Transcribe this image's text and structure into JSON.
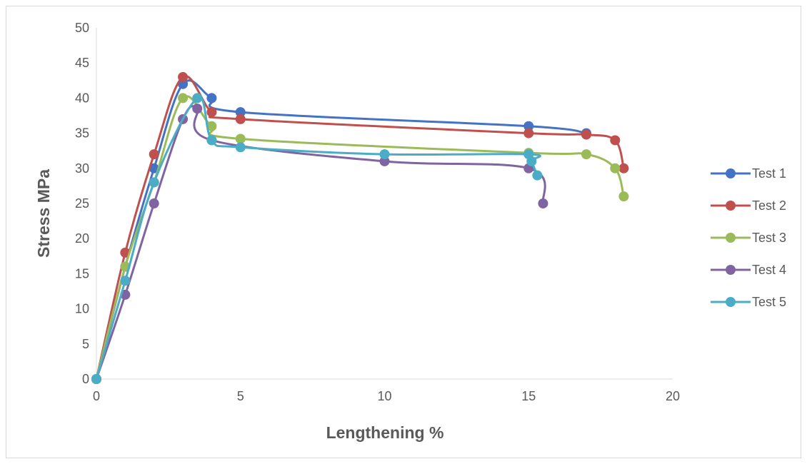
{
  "chart_data": {
    "type": "scatter",
    "title": "",
    "xlabel": "Lengthening %",
    "ylabel": "Stress MPa",
    "xlim": [
      0,
      20
    ],
    "ylim": [
      0,
      50
    ],
    "xticks": [
      0,
      5,
      10,
      15,
      20
    ],
    "yticks": [
      0,
      5,
      10,
      15,
      20,
      25,
      30,
      35,
      40,
      45,
      50
    ],
    "grid": false,
    "legend_position": "right",
    "series": [
      {
        "name": "Test 1",
        "color": "#4472C4",
        "points": [
          [
            0,
            0
          ],
          [
            1,
            16
          ],
          [
            2,
            30
          ],
          [
            3,
            42
          ],
          [
            4,
            40
          ],
          [
            5,
            38
          ],
          [
            15,
            36
          ],
          [
            17,
            35
          ]
        ]
      },
      {
        "name": "Test 2",
        "color": "#C0504D",
        "points": [
          [
            0,
            0
          ],
          [
            1,
            18
          ],
          [
            2,
            32
          ],
          [
            3,
            43
          ],
          [
            4,
            38
          ],
          [
            5,
            37
          ],
          [
            15,
            35
          ],
          [
            17,
            34.8
          ],
          [
            18,
            34
          ],
          [
            18.3,
            30
          ]
        ]
      },
      {
        "name": "Test 3",
        "color": "#9BBB59",
        "points": [
          [
            0,
            0
          ],
          [
            1,
            16
          ],
          [
            2,
            28
          ],
          [
            3,
            40
          ],
          [
            4,
            36
          ],
          [
            5,
            34.2
          ],
          [
            15,
            32.2
          ],
          [
            17,
            32
          ],
          [
            18,
            30
          ],
          [
            18.3,
            26
          ]
        ]
      },
      {
        "name": "Test 4",
        "color": "#8064A2",
        "points": [
          [
            0,
            0
          ],
          [
            1,
            12
          ],
          [
            2,
            25
          ],
          [
            3,
            37
          ],
          [
            3.5,
            38.5
          ],
          [
            4,
            34
          ],
          [
            10,
            31
          ],
          [
            15,
            30
          ],
          [
            15.5,
            25
          ]
        ]
      },
      {
        "name": "Test 5",
        "color": "#4BACC6",
        "points": [
          [
            0,
            0
          ],
          [
            1,
            14
          ],
          [
            2,
            28
          ],
          [
            3.5,
            40
          ],
          [
            4,
            34
          ],
          [
            5,
            33
          ],
          [
            10,
            32
          ],
          [
            15,
            32
          ],
          [
            15.1,
            31
          ],
          [
            15.3,
            29
          ]
        ]
      }
    ]
  }
}
